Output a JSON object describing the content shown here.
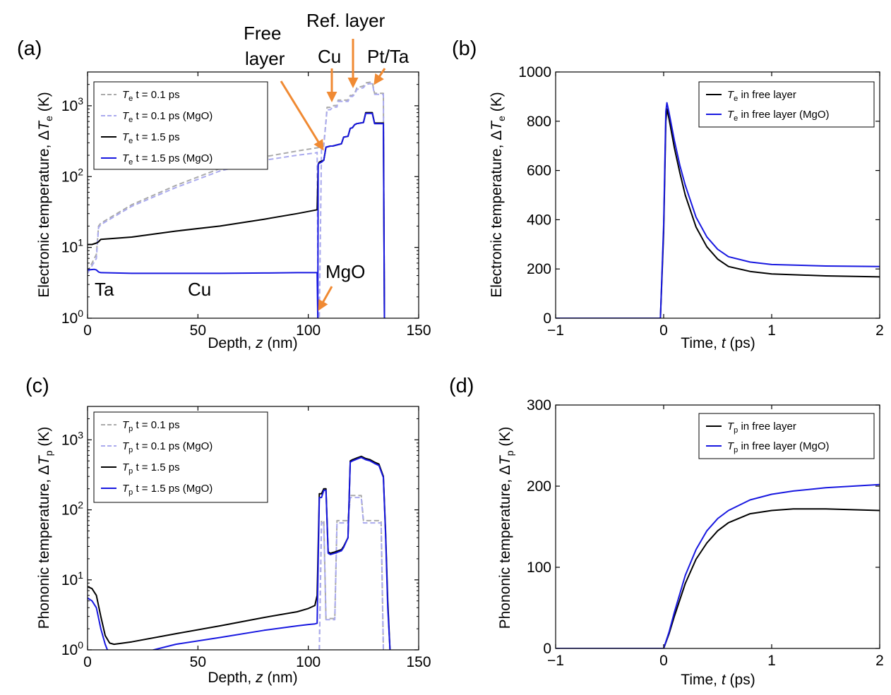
{
  "chart_data": [
    {
      "panel": "(a)",
      "type": "line",
      "xlabel": "Depth, z (nm)",
      "ylabel": "Electronic temperature, ΔTe (K)",
      "xlim": [
        0,
        150
      ],
      "ylim": [
        1,
        3000
      ],
      "yscale": "log",
      "xticks": [
        "0",
        "50",
        "100",
        "150"
      ],
      "yticks": [
        "10^0",
        "10^1",
        "10^2",
        "10^3"
      ],
      "legend_position": "top-left",
      "annotations": [
        "Free layer",
        "Cu",
        "Ref. layer",
        "Pt/Ta",
        "Ta",
        "Cu",
        "MgO"
      ],
      "series": [
        {
          "name": "Te t = 0.1 ps",
          "style": "dashed",
          "color": "#aaaaaa",
          "x": [
            0,
            4,
            5,
            6,
            20,
            40,
            60,
            80,
            95,
            104,
            105,
            106,
            107,
            108,
            108.5,
            110,
            111,
            112,
            113,
            113.5,
            118,
            119,
            120,
            121,
            122,
            125,
            126,
            128,
            129,
            130,
            131,
            132,
            133,
            134,
            134.5,
            135
          ],
          "y": [
            4.5,
            8,
            20,
            22,
            40,
            75,
            130,
            190,
            230,
            255,
            260,
            280,
            285,
            600,
            950,
            950,
            1000,
            1010,
            1010,
            1200,
            1200,
            1400,
            1400,
            1500,
            1800,
            1900,
            2100,
            2150,
            2150,
            1500,
            1500,
            1500,
            1500,
            1500,
            1,
            1
          ]
        },
        {
          "name": "Te t = 0.1 ps  (MgO)",
          "style": "dashed",
          "color": "#aaaaee",
          "x": [
            0,
            4,
            5,
            6,
            20,
            40,
            60,
            80,
            95,
            103,
            104,
            104.5,
            105,
            106,
            107,
            108,
            108.5,
            110,
            111,
            112,
            113,
            113.5,
            118,
            119,
            120,
            121,
            122,
            125,
            126,
            128,
            129,
            130,
            131,
            132,
            133,
            134,
            134.5,
            135
          ],
          "y": [
            4.3,
            7,
            19,
            21,
            38,
            70,
            120,
            170,
            200,
            215,
            220,
            1,
            1,
            260,
            270,
            600,
            880,
            880,
            950,
            960,
            960,
            1150,
            1150,
            1350,
            1350,
            1450,
            1700,
            1800,
            2000,
            2050,
            2050,
            1450,
            1450,
            1450,
            1450,
            1450,
            1,
            1
          ]
        },
        {
          "name": "Te t = 1.5 ps",
          "style": "solid",
          "color": "#000000",
          "x": [
            0,
            2,
            4,
            5,
            6,
            20,
            40,
            60,
            80,
            95,
            104,
            104.5,
            105,
            106,
            107,
            108,
            110,
            111,
            113,
            114,
            115,
            116,
            118,
            119,
            120,
            121,
            122,
            125,
            126,
            128,
            129,
            130,
            133,
            134,
            134.5
          ],
          "y": [
            11,
            11,
            11.5,
            12,
            13,
            14,
            17,
            20,
            25,
            30,
            34,
            150,
            160,
            165,
            170,
            260,
            270,
            270,
            280,
            285,
            290,
            360,
            370,
            480,
            490,
            540,
            560,
            580,
            800,
            800,
            800,
            570,
            570,
            570,
            1
          ]
        },
        {
          "name": "Te t = 1.5 ps (MgO)",
          "style": "solid",
          "color": "#1818e0",
          "x": [
            0,
            3,
            4,
            5,
            6,
            20,
            40,
            60,
            80,
            95,
            104,
            104.3,
            104.5,
            105,
            106,
            107,
            108,
            110,
            111,
            113,
            114,
            115,
            116,
            118,
            119,
            120,
            121,
            122,
            125,
            126,
            128,
            129,
            130,
            133,
            134,
            134.5
          ],
          "y": [
            4.8,
            4.9,
            4.8,
            4.5,
            4.4,
            4.3,
            4.3,
            4.3,
            4.35,
            4.4,
            4.4,
            1,
            150,
            155,
            160,
            170,
            260,
            270,
            270,
            280,
            285,
            290,
            360,
            370,
            480,
            490,
            540,
            560,
            580,
            780,
            780,
            780,
            560,
            560,
            560,
            1
          ]
        }
      ]
    },
    {
      "panel": "(b)",
      "type": "line",
      "xlabel": "Time, t (ps)",
      "ylabel": "Electronic temperature, ΔTe (K)",
      "xlim": [
        -1,
        2
      ],
      "ylim": [
        0,
        1000
      ],
      "xticks": [
        "−1",
        "0",
        "1",
        "2"
      ],
      "yticks": [
        "0",
        "200",
        "400",
        "600",
        "800",
        "1000"
      ],
      "legend_position": "top-right",
      "series": [
        {
          "name": "Te in free layer",
          "color": "#000000",
          "x": [
            -1,
            -0.03,
            0,
            0.02,
            0.03,
            0.05,
            0.1,
            0.15,
            0.2,
            0.3,
            0.4,
            0.5,
            0.6,
            0.8,
            1.0,
            1.5,
            2.0
          ],
          "y": [
            0,
            0,
            350,
            800,
            850,
            810,
            690,
            590,
            500,
            370,
            290,
            240,
            210,
            190,
            180,
            172,
            168
          ]
        },
        {
          "name": "Te in free layer (MgO)",
          "color": "#1818e0",
          "x": [
            -1,
            -0.03,
            0,
            0.02,
            0.03,
            0.05,
            0.1,
            0.15,
            0.2,
            0.3,
            0.4,
            0.5,
            0.6,
            0.8,
            1.0,
            1.5,
            2.0
          ],
          "y": [
            0,
            0,
            380,
            840,
            875,
            835,
            720,
            620,
            540,
            410,
            330,
            280,
            250,
            228,
            218,
            212,
            210
          ]
        }
      ]
    },
    {
      "panel": "(c)",
      "type": "line",
      "xlabel": "Depth, z (nm)",
      "ylabel": "Phononic temperature, ΔTp (K)",
      "xlim": [
        0,
        150
      ],
      "ylim": [
        1,
        3000
      ],
      "yscale": "log",
      "xticks": [
        "0",
        "50",
        "100",
        "150"
      ],
      "yticks": [
        "10^0",
        "10^1",
        "10^2",
        "10^3"
      ],
      "legend_position": "top-left",
      "series": [
        {
          "name": "Tp t = 0.1 ps",
          "style": "dashed",
          "color": "#aaaaaa",
          "x": [
            105,
            106,
            107,
            108,
            110,
            112,
            113,
            114,
            118,
            119,
            120,
            122,
            124,
            125,
            126,
            128,
            130,
            132,
            133,
            134,
            135
          ],
          "y": [
            1,
            70,
            70,
            2.8,
            2.8,
            2.8,
            70,
            70,
            70,
            160,
            160,
            160,
            160,
            70,
            70,
            70,
            70,
            70,
            70,
            1,
            1
          ]
        },
        {
          "name": "Tp t = 0.1 ps (MgO)",
          "style": "dashed",
          "color": "#aaaaee",
          "x": [
            105,
            106,
            107,
            108,
            110,
            112,
            113,
            114,
            118,
            119,
            120,
            122,
            124,
            125,
            126,
            128,
            130,
            132,
            133,
            134,
            135
          ],
          "y": [
            1,
            65,
            65,
            2.7,
            2.7,
            2.7,
            65,
            65,
            65,
            150,
            150,
            150,
            150,
            65,
            65,
            65,
            65,
            65,
            65,
            1,
            1
          ]
        },
        {
          "name": "Tp t = 1.5 ps",
          "style": "solid",
          "color": "#000000",
          "x": [
            0,
            2,
            4,
            6,
            8,
            10,
            12,
            20,
            40,
            60,
            80,
            95,
            100,
            103,
            104,
            105,
            106,
            107,
            108,
            109,
            110,
            112,
            115,
            116,
            118,
            119,
            120,
            122,
            124,
            126,
            128,
            130,
            132,
            134,
            135,
            136,
            137
          ],
          "y": [
            8,
            7.5,
            6,
            3,
            1.6,
            1.25,
            1.2,
            1.3,
            1.7,
            2.2,
            2.9,
            3.5,
            3.9,
            4.3,
            6,
            170,
            170,
            200,
            200,
            25,
            24,
            25,
            27,
            30,
            40,
            500,
            520,
            550,
            580,
            540,
            520,
            480,
            450,
            300,
            50,
            5,
            1
          ]
        },
        {
          "name": "Tp t = 1.5 ps  (MgO)",
          "style": "solid",
          "color": "#1818e0",
          "x": [
            0,
            2,
            4,
            6,
            8,
            9,
            10,
            20,
            30,
            40,
            60,
            80,
            95,
            100,
            103,
            104,
            105,
            106,
            107,
            108,
            109,
            110,
            112,
            115,
            116,
            118,
            119,
            120,
            122,
            124,
            126,
            128,
            130,
            132,
            134,
            135,
            136,
            137
          ],
          "y": [
            5.5,
            5,
            4,
            2,
            1.2,
            1,
            0.9,
            0.8,
            1,
            1.2,
            1.5,
            1.9,
            2.2,
            2.3,
            2.35,
            2.4,
            150,
            150,
            190,
            190,
            24,
            23,
            24,
            26,
            29,
            40,
            480,
            500,
            530,
            560,
            520,
            500,
            460,
            430,
            290,
            45,
            4,
            1
          ]
        }
      ]
    },
    {
      "panel": "(d)",
      "type": "line",
      "xlabel": "Time, t (ps)",
      "ylabel": "Phononic temperature, ΔTp (K)",
      "xlim": [
        -1,
        2
      ],
      "ylim": [
        0,
        300
      ],
      "xticks": [
        "−1",
        "0",
        "1",
        "2"
      ],
      "yticks": [
        "0",
        "100",
        "200",
        "300"
      ],
      "legend_position": "top-right",
      "series": [
        {
          "name": "Tp in free layer",
          "color": "#000000",
          "x": [
            -1,
            0,
            0.05,
            0.1,
            0.2,
            0.3,
            0.4,
            0.5,
            0.6,
            0.8,
            1.0,
            1.2,
            1.5,
            2.0
          ],
          "y": [
            0,
            0,
            18,
            40,
            80,
            110,
            130,
            145,
            155,
            166,
            170,
            172,
            172,
            170
          ]
        },
        {
          "name": "Tp in free layer (MgO)",
          "color": "#1818e0",
          "x": [
            -1,
            0,
            0.05,
            0.1,
            0.2,
            0.3,
            0.4,
            0.5,
            0.6,
            0.8,
            1.0,
            1.2,
            1.5,
            2.0
          ],
          "y": [
            0,
            0,
            20,
            45,
            90,
            122,
            145,
            160,
            170,
            183,
            190,
            194,
            198,
            202
          ]
        }
      ]
    }
  ],
  "legends": {
    "a": [
      {
        "pre": "T",
        "sub": "e",
        "post": " t = 0.1 ps"
      },
      {
        "pre": "T",
        "sub": "e",
        "post": " t = 0.1 ps  (MgO)"
      },
      {
        "pre": "T",
        "sub": "e",
        "post": " t = 1.5 ps"
      },
      {
        "pre": "T",
        "sub": "e",
        "post": " t = 1.5 ps (MgO)"
      }
    ],
    "b": [
      {
        "pre": "T",
        "sub": "e",
        "post": " in free layer"
      },
      {
        "pre": "T",
        "sub": "e",
        "post": " in free layer (MgO)"
      }
    ],
    "c": [
      {
        "pre": "T",
        "sub": "p",
        "post": " t = 0.1 ps"
      },
      {
        "pre": "T",
        "sub": "p",
        "post": " t = 0.1 ps (MgO)"
      },
      {
        "pre": "T",
        "sub": "p",
        "post": " t = 1.5 ps"
      },
      {
        "pre": "T",
        "sub": "p",
        "post": " t = 1.5 ps  (MgO)"
      }
    ],
    "d": [
      {
        "pre": "T",
        "sub": "p",
        "post": " in free layer"
      },
      {
        "pre": "T",
        "sub": "p",
        "post": " in free layer (MgO)"
      }
    ]
  },
  "annotations": {
    "free_layer_line1": "Free",
    "free_layer_line2": "layer",
    "cu_top": "Cu",
    "ref_layer": "Ref. layer",
    "pt_ta": "Pt/Ta",
    "ta": "Ta",
    "cu_bottom": "Cu",
    "mgo": "MgO",
    "arrow_color": "#f08a33"
  },
  "colors": {
    "black": "#000000",
    "blue": "#1818e0",
    "dashed_gray": "#aaaaaa",
    "dashed_lavender": "#aaaaee",
    "orange_arrow": "#f08a33"
  }
}
